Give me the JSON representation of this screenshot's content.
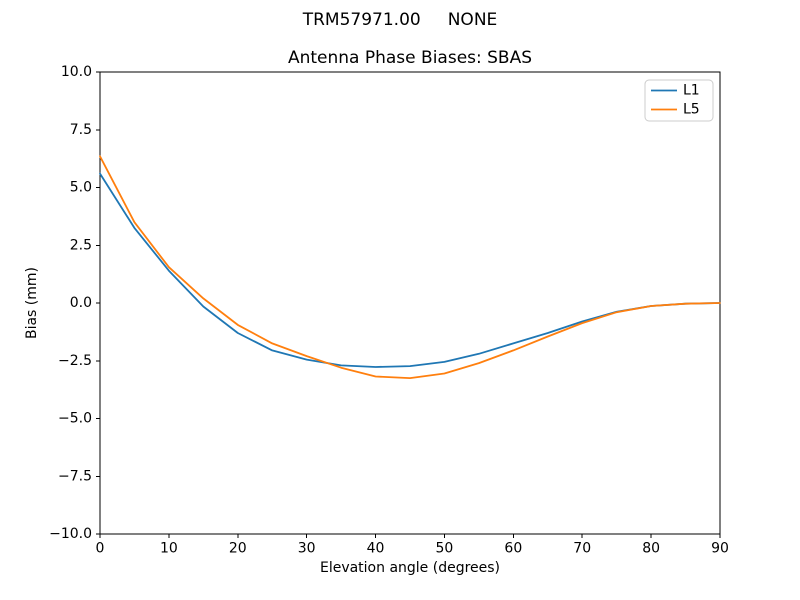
{
  "figure": {
    "suptitle": "TRM57971.00     NONE"
  },
  "chart_data": {
    "type": "line",
    "title": "Antenna Phase Biases: SBAS",
    "xlabel": "Elevation angle (degrees)",
    "ylabel": "Bias (mm)",
    "xlim": [
      0,
      90
    ],
    "ylim": [
      -10,
      10
    ],
    "grid": false,
    "legend_position": "upper right",
    "x": [
      0,
      5,
      10,
      15,
      20,
      25,
      30,
      35,
      40,
      45,
      50,
      55,
      60,
      65,
      70,
      75,
      80,
      85,
      90
    ],
    "series": [
      {
        "name": "L1",
        "color": "#1f77b4",
        "values": [
          5.6,
          3.25,
          1.4,
          -0.15,
          -1.3,
          -2.05,
          -2.45,
          -2.7,
          -2.77,
          -2.73,
          -2.55,
          -2.2,
          -1.75,
          -1.3,
          -0.8,
          -0.38,
          -0.13,
          -0.03,
          0.0
        ]
      },
      {
        "name": "L5",
        "color": "#ff7f0e",
        "values": [
          6.35,
          3.5,
          1.55,
          0.2,
          -0.95,
          -1.75,
          -2.3,
          -2.8,
          -3.18,
          -3.25,
          -3.05,
          -2.6,
          -2.05,
          -1.45,
          -0.87,
          -0.4,
          -0.13,
          -0.03,
          0.0
        ]
      }
    ],
    "xticks": [
      0,
      10,
      20,
      30,
      40,
      50,
      60,
      70,
      80,
      90
    ],
    "xtick_labels": [
      "0",
      "10",
      "20",
      "30",
      "40",
      "50",
      "60",
      "70",
      "80",
      "90"
    ],
    "yticks": [
      10,
      7.5,
      5,
      2.5,
      0,
      -2.5,
      -5,
      -7.5,
      -10
    ],
    "ytick_labels": [
      "10.0",
      "7.5",
      "5.0",
      "2.5",
      "0.0",
      "−2.5",
      "−5.0",
      "−7.5",
      "−10.0"
    ],
    "axis_color": "#000000",
    "legend_border_color": "#cccccc"
  }
}
